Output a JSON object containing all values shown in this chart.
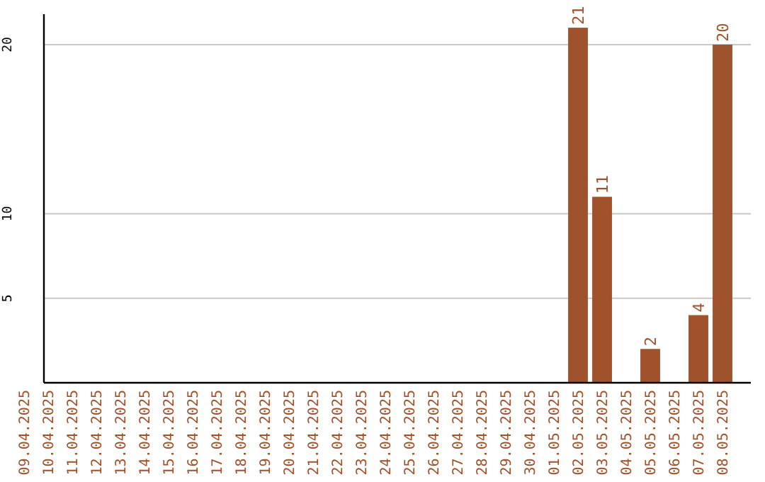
{
  "chart_data": {
    "type": "bar",
    "categories": [
      "09.04.2025",
      "10.04.2025",
      "11.04.2025",
      "12.04.2025",
      "13.04.2025",
      "14.04.2025",
      "15.04.2025",
      "16.04.2025",
      "17.04.2025",
      "18.04.2025",
      "19.04.2025",
      "20.04.2025",
      "21.04.2025",
      "22.04.2025",
      "23.04.2025",
      "24.04.2025",
      "25.04.2025",
      "26.04.2025",
      "27.04.2025",
      "28.04.2025",
      "29.04.2025",
      "30.04.2025",
      "01.05.2025",
      "02.05.2025",
      "03.05.2025",
      "04.05.2025",
      "05.05.2025",
      "06.05.2025",
      "07.05.2025",
      "08.05.2025"
    ],
    "values": [
      0,
      0,
      0,
      0,
      0,
      0,
      0,
      0,
      0,
      0,
      0,
      0,
      0,
      0,
      0,
      0,
      0,
      0,
      0,
      0,
      0,
      0,
      0,
      21,
      11,
      0,
      2,
      0,
      4,
      20
    ],
    "value_labels": [
      null,
      null,
      null,
      null,
      null,
      null,
      null,
      null,
      null,
      null,
      null,
      null,
      null,
      null,
      null,
      null,
      null,
      null,
      null,
      null,
      null,
      null,
      null,
      "21",
      "11",
      null,
      "2",
      null,
      "4",
      "20"
    ],
    "color": "#a0522d",
    "ylim": [
      0,
      21.8
    ],
    "yticks": [
      5,
      10,
      20
    ],
    "grid": "y"
  }
}
